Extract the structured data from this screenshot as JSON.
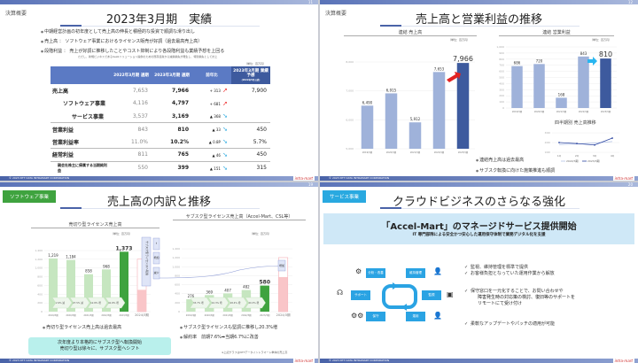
{
  "common": {
    "copyright": "© 2023 NTT DATA INTRAMART CORPORATION",
    "logo": "intra-mart"
  },
  "slide1": {
    "page": "11",
    "section": "決算概要",
    "title": "2023年3月期　実績",
    "bullets": [
      "中期経営計画の初年度として売上高の伸長と積極的な投資で順調な滑り出し",
      "売上高 ： ソフトウェア事業におけるライセンス販売が好調（過去最高売上高）",
      "段階利益 ： 売上が好調に推移したことやコスト抑制により各段階利益も業績予想を上回る"
    ],
    "subnote": "ただし、新規ビジネスであるSaaSソリューション提供のための既存資産から減損損失が発生し、特別損失として計上",
    "unit": "（単位：百万円）",
    "headers": [
      "",
      "2022年3月期 通期",
      "2023年3月期 通期",
      "前年比",
      "2023年3月期 業績予想"
    ],
    "forecast_note": "（2022年5月公表）",
    "rows": [
      {
        "label": "売上高",
        "prev": "7,653",
        "cur": "7,966",
        "diff": "+ 313",
        "dir": "up",
        "fc": "7,900"
      },
      {
        "label": "ソフトウェア事業",
        "prev": "4,116",
        "cur": "4,797",
        "diff": "+ 681",
        "dir": "up",
        "fc": ""
      },
      {
        "label": "サービス事業",
        "prev": "3,537",
        "cur": "3,169",
        "diff": "▲ 368",
        "dir": "down",
        "fc": ""
      },
      {
        "label": "営業利益",
        "prev": "843",
        "cur": "810",
        "diff": "▲ 33",
        "dir": "down",
        "fc": "450"
      },
      {
        "label": "営業利益率",
        "prev": "11.0%",
        "cur": "10.2%",
        "diff": "▲ 0.8P",
        "dir": "down",
        "fc": "5.7%"
      },
      {
        "label": "経常利益",
        "prev": "811",
        "cur": "765",
        "diff": "▲ 46",
        "dir": "down",
        "fc": "450"
      },
      {
        "label": "親会社株主に帰属する当期純利益",
        "prev": "550",
        "cur": "399",
        "diff": "▲ 151",
        "dir": "down",
        "fc": "315"
      }
    ],
    "colors": {
      "header": "#5b7ac4",
      "up": "#e22222",
      "down": "#29a9e0"
    }
  },
  "slide2": {
    "page": "12",
    "section": "決算概要",
    "title": "売上高と営業利益の推移",
    "bullets": [
      "連結売上高は過去最高",
      "サブスク転換に向けた施策推進も順調"
    ],
    "chart_data": [
      {
        "type": "bar",
        "title": "連結 売上高",
        "unit": "（単位：百万円）",
        "categories": [
          "2019/3期",
          "2020/3期",
          "2021/3期",
          "2022/3期",
          "2023/3期"
        ],
        "values": [
          6490,
          6915,
          5912,
          7653,
          7966
        ],
        "labels": [
          "6,490",
          "6,915",
          "5,912",
          "7,653",
          "7,966"
        ],
        "ylim": [
          5000,
          8000
        ],
        "yticks": [
          "5,000",
          "6,000",
          "7,000",
          "8,000"
        ],
        "highlight_last": true
      },
      {
        "type": "bar",
        "title": "連結 営業利益",
        "unit": "（単位：百万円）",
        "categories": [
          "2019/3期",
          "2020/3期",
          "2021/3期",
          "2022/3期",
          "2023/3期"
        ],
        "values": [
          686,
          720,
          168,
          843,
          810
        ],
        "labels": [
          "686",
          "720",
          "168",
          "843",
          "810"
        ],
        "ylim": [
          0,
          1000
        ],
        "yticks": [
          "0",
          "100",
          "200",
          "300",
          "400",
          "500",
          "600",
          "700",
          "800",
          "900",
          "1,000"
        ],
        "highlight_last": true
      },
      {
        "type": "line",
        "title": "四半期別 売上高推移",
        "categories": [
          "1Q",
          "2Q",
          "3Q",
          "4Q"
        ],
        "ylim": [
          1000,
          3000
        ],
        "yticks": [
          "1000",
          "2000",
          "3000"
        ],
        "series": [
          {
            "name": "2022/3期",
            "values": [
              1800,
              1850,
              1950,
              2100
            ]
          },
          {
            "name": "2023/3期",
            "values": [
              2000,
              1900,
              1750,
              2450
            ]
          }
        ]
      }
    ],
    "colors": {
      "bar": "#9fb2da",
      "highlight": "#3d5a9e",
      "arrow_up": "#e22222",
      "arrow_flat": "#29b6f0"
    }
  },
  "slide3": {
    "page": "19",
    "section": "ソフトウェア事業",
    "title": "売上高の内訳と推移",
    "bullets_left": [
      "売切り型ライセンス売上高は過去最高"
    ],
    "bullets_right": [
      "サブスク型ライセンスも堅調に推移し20.3%増",
      "解約率　前期7.6%➡当期6.7%に改善"
    ],
    "note": [
      "次年度より本格的にサブスク型へ転換開始",
      "売切り型は徐々に、サブスク型へシフト"
    ],
    "footnote": "※上記グラフはNTTデータイントラマート単体の売上高",
    "side_labels": [
      "サブスク型ライセンスへ転換",
      "↑",
      "増加",
      "減少"
    ],
    "chart_data": [
      {
        "type": "bar",
        "title": "売切り型ライセンス売上高",
        "unit": "（単位：百万円）",
        "categories": [
          "2019/3期",
          "2020/3期",
          "2021/3期",
          "2022/3期",
          "2023/3期",
          "2024/3期"
        ],
        "values": [
          1219,
          1184,
          858,
          968,
          1373,
          null
        ],
        "labels": [
          "1,219",
          "1,184",
          "858",
          "968",
          "1,373",
          ""
        ],
        "changes": [
          "2.9% 減",
          "27.5% 減",
          "12.8% 増",
          "41.8% 増"
        ],
        "ylim": [
          0,
          1400
        ],
        "yticks": [
          "0",
          "200",
          "400",
          "600",
          "800",
          "1,000",
          "1,200",
          "1,400"
        ]
      },
      {
        "type": "bar",
        "title": "サブスク型ライセンス売上高（Accel-Mart、CSL等）",
        "unit": "（単位：百万円）",
        "categories": [
          "2019/3期",
          "2020/3期",
          "2021/3期",
          "2022/3期",
          "2023/3期",
          "2024/3期"
        ],
        "values": [
          276,
          369,
          407,
          482,
          580,
          null
        ],
        "labels": [
          "276",
          "369",
          "407",
          "482",
          "580",
          ""
        ],
        "changes": [
          "33.7% 増",
          "10.3% 増",
          "18.4% 増",
          "20.3% 増"
        ],
        "ylim": [
          0,
          1400
        ],
        "yticks": [
          "0",
          "200",
          "400",
          "600",
          "800",
          "1,000",
          "1,200",
          "1,400"
        ]
      }
    ],
    "colors": {
      "bar": "#c6e6c0",
      "highlight": "#3fa33f",
      "forecast": "#f9c5c8",
      "box": "#dfe5f7"
    }
  },
  "slide4": {
    "page": "20",
    "section": "サービス事業",
    "title": "クラウドビジネスのさらなる強化",
    "headline": "「Accel-Mart」のマネージドサービス提供開始",
    "subheadline": "IT 専門部隊による安全かつ安心した運用保守体制で業務デジタル化を支援",
    "cycle": [
      "分析・改善",
      "維持管理",
      "監視",
      "運用",
      "保守",
      "サポート"
    ],
    "checks": [
      "監視、維持管理を標準で提供",
      "お客様負担となっていた運用作業から解放",
      "保守窓口を一元化することで、お問い合わせや",
      "障害発生時の対応策の検討、復旧等のサポートを",
      "リモートにて受け付け",
      "柔軟なアップデートやパッチの適用が可能"
    ],
    "colors": {
      "band": "#cfe8f7",
      "node": "#2aa3e3",
      "tag": "#29a9e0"
    }
  }
}
